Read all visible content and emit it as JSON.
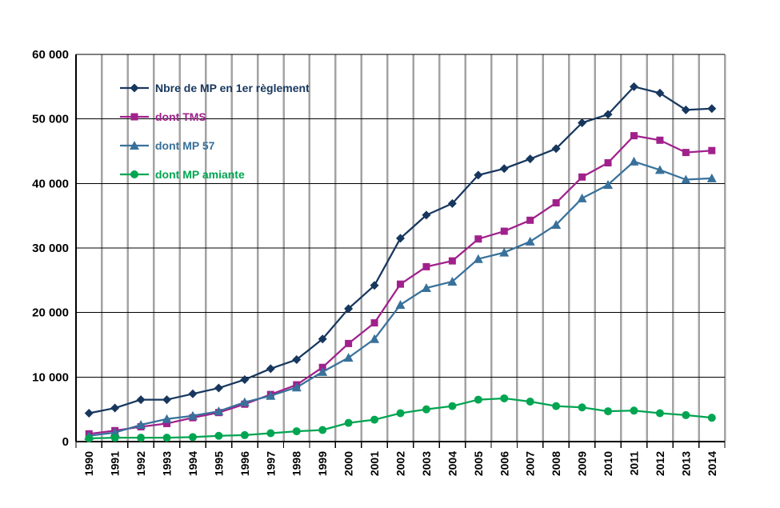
{
  "chart_data": {
    "type": "line",
    "title": "",
    "xlabel": "",
    "ylabel": "",
    "legend_position": "inside-top-left",
    "grid": {
      "horizontal": "on-black",
      "vertical": "on-gray"
    },
    "ylim": [
      0,
      60000
    ],
    "colors": {
      "vgrid": "#A3A3A3",
      "hgrid": "#000000",
      "axis": "#000000",
      "background": "#FFFFFF"
    },
    "y_ticks": [
      {
        "value": 0,
        "label": "0"
      },
      {
        "value": 10000,
        "label": "10 000"
      },
      {
        "value": 20000,
        "label": "20 000"
      },
      {
        "value": 30000,
        "label": "30 000"
      },
      {
        "value": 40000,
        "label": "40 000"
      },
      {
        "value": 50000,
        "label": "50 000"
      },
      {
        "value": 60000,
        "label": "60 000"
      }
    ],
    "categories": [
      "1990",
      "1991",
      "1992",
      "1993",
      "1994",
      "1995",
      "1996",
      "1997",
      "1998",
      "1999",
      "2000",
      "2001",
      "2002",
      "2003",
      "2004",
      "2005",
      "2006",
      "2007",
      "2008",
      "2009",
      "2010",
      "2011",
      "2012",
      "2013",
      "2014"
    ],
    "x_label_rotation": -90,
    "series": [
      {
        "id": "mp-total",
        "name": "Nbre de MP en 1er règlement",
        "marker": "diamond",
        "color": "#17375E",
        "values": [
          4400,
          5200,
          6500,
          6500,
          7400,
          8300,
          9600,
          11300,
          12700,
          15900,
          20600,
          24200,
          31500,
          35100,
          36900,
          41300,
          42300,
          43800,
          45400,
          49400,
          50700,
          55000,
          54000,
          51400,
          51600
        ]
      },
      {
        "id": "tms",
        "name": "dont TMS",
        "marker": "square",
        "color": "#A0218C",
        "values": [
          1200,
          1700,
          2300,
          2800,
          3700,
          4500,
          5800,
          7300,
          8800,
          11500,
          15200,
          18400,
          24400,
          27100,
          28000,
          31400,
          32600,
          34300,
          37000,
          41000,
          43200,
          47400,
          46700,
          44800,
          45100
        ]
      },
      {
        "id": "mp57",
        "name": "dont MP 57",
        "marker": "triangle",
        "color": "#38719B",
        "values": [
          900,
          1400,
          2600,
          3500,
          4000,
          4700,
          6100,
          7100,
          8400,
          10800,
          13000,
          15900,
          21200,
          23800,
          24800,
          28300,
          29300,
          31000,
          33600,
          37700,
          39800,
          43400,
          42100,
          40600,
          40800
        ]
      },
      {
        "id": "amiante",
        "name": "dont MP amiante",
        "marker": "circle",
        "color": "#00A551",
        "values": [
          500,
          600,
          600,
          600,
          700,
          900,
          1000,
          1300,
          1600,
          1800,
          2900,
          3400,
          4400,
          5000,
          5500,
          6500,
          6700,
          6200,
          5500,
          5300,
          4700,
          4800,
          4400,
          4100,
          3700
        ]
      }
    ]
  }
}
